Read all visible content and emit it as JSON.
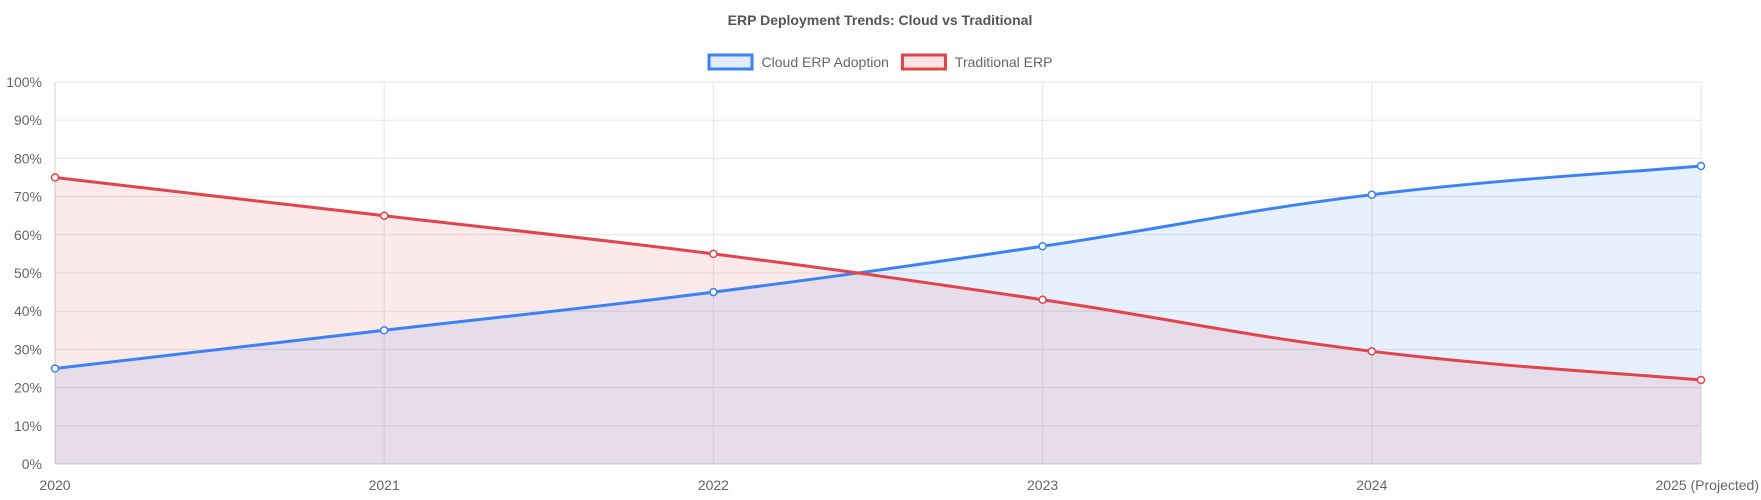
{
  "chart_data": {
    "type": "area",
    "title": "ERP Deployment Trends: Cloud vs Traditional",
    "xlabel": "",
    "ylabel": "",
    "categories": [
      "2020",
      "2021",
      "2022",
      "2023",
      "2024",
      "2025 (Projected)"
    ],
    "ylim": [
      0,
      100
    ],
    "yticks": [
      0,
      10,
      20,
      30,
      40,
      50,
      60,
      70,
      80,
      90,
      100
    ],
    "ytick_labels": [
      "0%",
      "10%",
      "20%",
      "30%",
      "40%",
      "50%",
      "60%",
      "70%",
      "80%",
      "90%",
      "100%"
    ],
    "grid": true,
    "legend_position": "top-center",
    "series": [
      {
        "name": "Cloud ERP Adoption",
        "values": [
          25,
          35,
          45,
          57,
          70.5,
          78
        ],
        "color": "#3b82f6",
        "fill": "rgba(59,130,246,0.12)"
      },
      {
        "name": "Traditional ERP",
        "values": [
          75,
          65,
          55,
          43,
          29.5,
          22
        ],
        "color": "#e3434b",
        "fill": "rgba(227,67,75,0.11)"
      }
    ]
  }
}
